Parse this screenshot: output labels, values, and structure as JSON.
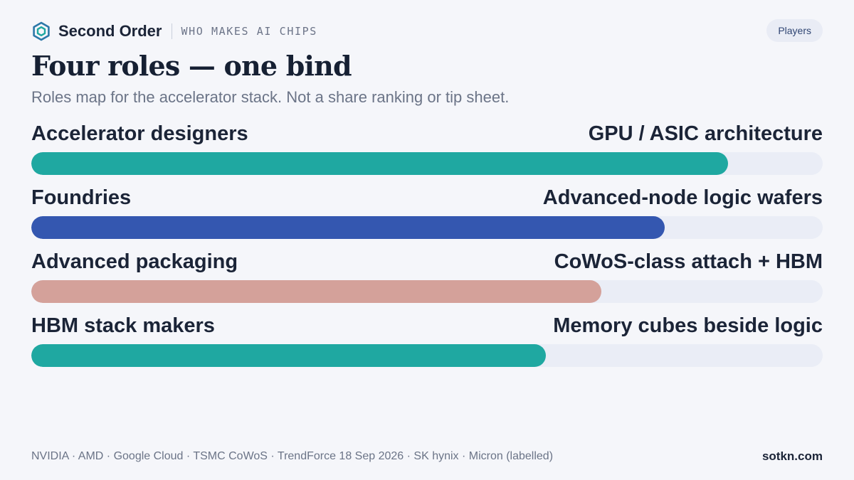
{
  "header": {
    "brand": "Second Order",
    "kicker": "WHO MAKES AI CHIPS",
    "tag": "Players",
    "logo_icon": "hexagon-logo-icon"
  },
  "title": "Four roles — one bind",
  "subtitle": "Roles map for the accelerator stack. Not a share ranking or tip sheet.",
  "rows": [
    {
      "label": "Accelerator designers",
      "desc": "GPU / ASIC architecture",
      "fill_fraction": 0.88,
      "color": "#1fa8a1"
    },
    {
      "label": "Foundries",
      "desc": "Advanced-node logic wafers",
      "fill_fraction": 0.8,
      "color": "#3457b0"
    },
    {
      "label": "Advanced packaging",
      "desc": "CoWoS-class attach + HBM",
      "fill_fraction": 0.72,
      "color": "#d4a19a"
    },
    {
      "label": "HBM stack makers",
      "desc": "Memory cubes beside logic",
      "fill_fraction": 0.65,
      "color": "#1fa8a1"
    }
  ],
  "footer": {
    "sources": "NVIDIA · AMD · Google Cloud · TSMC CoWoS · TrendForce 18 Sep 2026 · SK hynix · Micron (labelled)",
    "site": "sotkn.com"
  },
  "colors": {
    "background": "#f5f6fa",
    "track": "#eaedf6",
    "text": "#1b2437",
    "muted": "#6b7487",
    "teal": "#1fa8a1",
    "blue": "#3457b0",
    "rose": "#d4a19a"
  }
}
